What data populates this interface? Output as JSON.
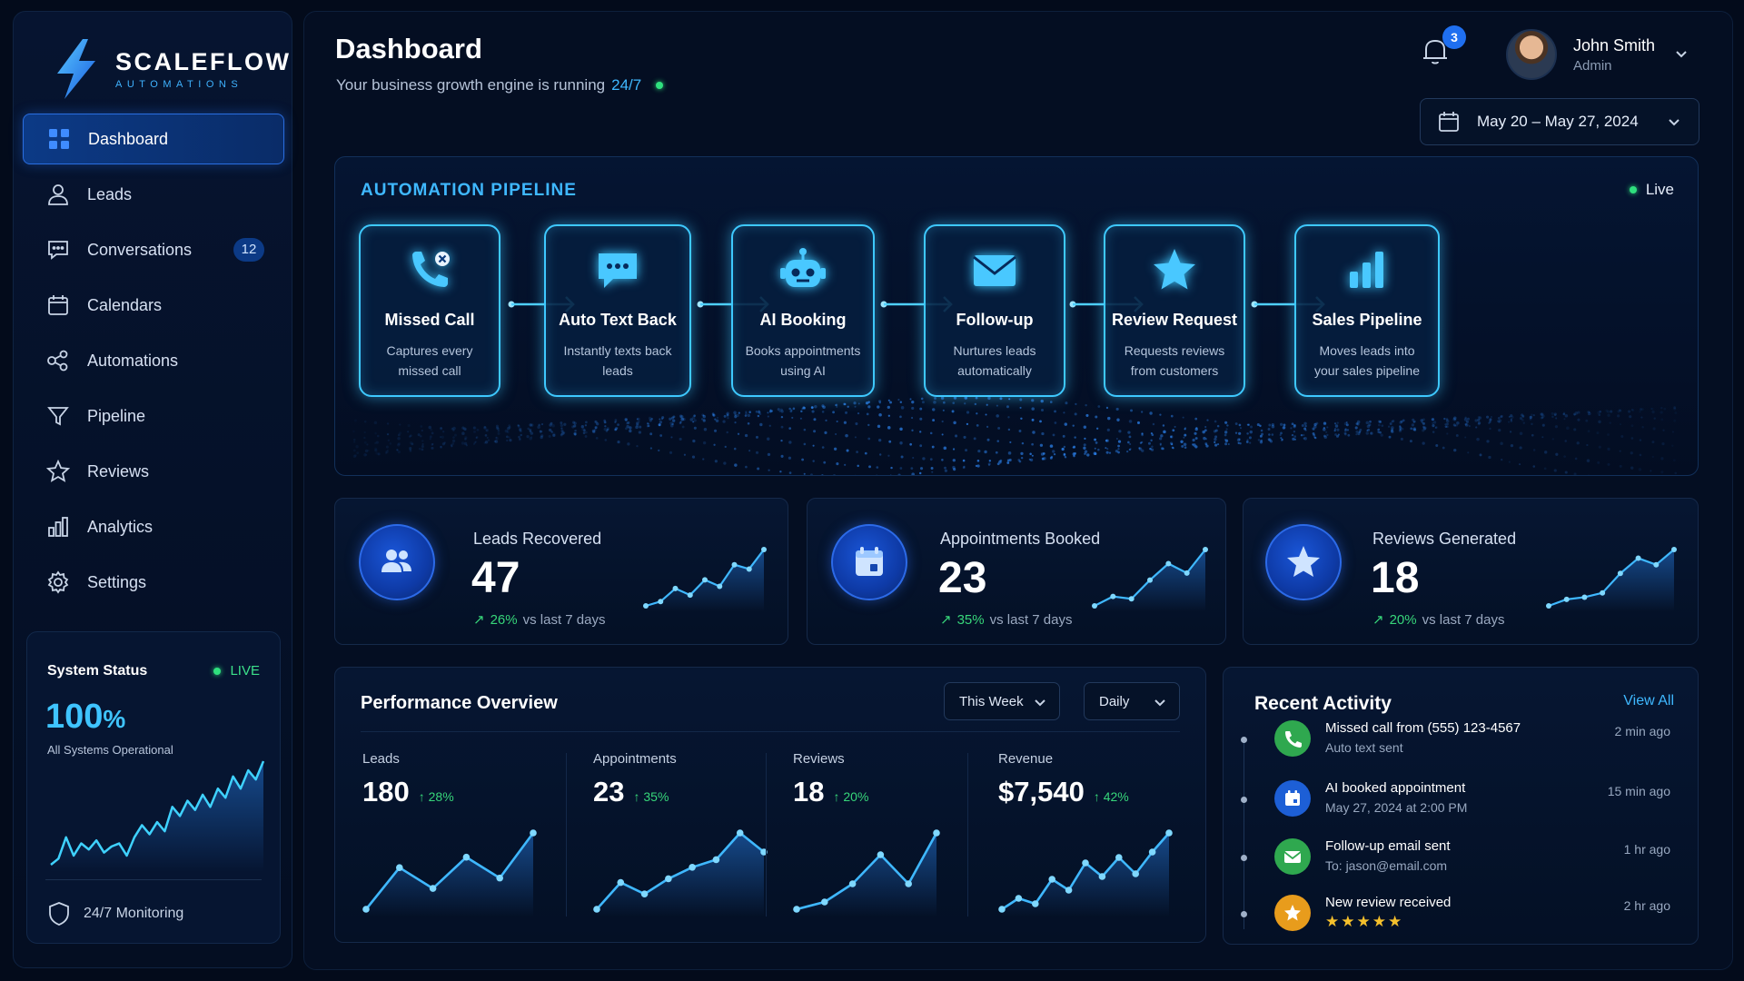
{
  "brand": {
    "name": "SCALEFLOW",
    "tagline": "AUTOMATIONS"
  },
  "sidebar": {
    "items": [
      {
        "label": "Dashboard",
        "icon": "grid-icon",
        "active": true
      },
      {
        "label": "Leads",
        "icon": "user-icon"
      },
      {
        "label": "Conversations",
        "icon": "chat-icon",
        "badge": "12"
      },
      {
        "label": "Calendars",
        "icon": "calendar-icon"
      },
      {
        "label": "Automations",
        "icon": "share-nodes-icon"
      },
      {
        "label": "Pipeline",
        "icon": "funnel-icon"
      },
      {
        "label": "Reviews",
        "icon": "star-icon"
      },
      {
        "label": "Analytics",
        "icon": "bar-chart-icon"
      },
      {
        "label": "Settings",
        "icon": "gear-icon"
      }
    ],
    "system_status": {
      "title": "System Status",
      "live_label": "LIVE",
      "percent": "100",
      "percent_unit": "%",
      "subtitle": "All Systems Operational",
      "monitoring": "24/7 Monitoring",
      "sparkline": [
        8,
        12,
        26,
        14,
        22,
        18,
        24,
        16,
        20,
        22,
        14,
        26,
        34,
        28,
        36,
        30,
        46,
        40,
        50,
        44,
        54,
        46,
        58,
        52,
        66,
        58,
        70,
        64,
        76
      ]
    }
  },
  "header": {
    "title": "Dashboard",
    "subtitle": "Your business growth engine is running",
    "subtitle_accent": "24/7",
    "notifications": "3",
    "user_name": "John Smith",
    "user_role": "Admin",
    "date_range": "May 20 – May 27, 2024"
  },
  "pipeline": {
    "title": "AUTOMATION PIPELINE",
    "live_label": "Live",
    "steps": [
      {
        "title": "Missed Call",
        "desc": "Captures every missed call",
        "icon": "missed-call-icon"
      },
      {
        "title": "Auto Text Back",
        "desc": "Instantly texts back leads",
        "icon": "chat-bubble-icon"
      },
      {
        "title": "AI Booking",
        "desc": "Books appointments using AI",
        "icon": "robot-icon"
      },
      {
        "title": "Follow-up",
        "desc": "Nurtures leads automatically",
        "icon": "envelope-icon"
      },
      {
        "title": "Review Request",
        "desc": "Requests reviews from customers",
        "icon": "star-icon"
      },
      {
        "title": "Sales Pipeline",
        "desc": "Moves leads into your sales pipeline",
        "icon": "bar-chart-icon"
      }
    ]
  },
  "kpis": [
    {
      "label": "Leads Recovered",
      "value": "47",
      "delta": "26%",
      "delta_text": "vs last 7 days",
      "icon": "users-icon",
      "trend": [
        10,
        14,
        26,
        20,
        34,
        28,
        48,
        44,
        62
      ]
    },
    {
      "label": "Appointments Booked",
      "value": "23",
      "delta": "35%",
      "delta_text": "vs last 7 days",
      "icon": "calendar-icon",
      "trend": [
        8,
        16,
        14,
        30,
        44,
        36,
        56
      ]
    },
    {
      "label": "Reviews Generated",
      "value": "18",
      "delta": "20%",
      "delta_text": "vs last 7 days",
      "icon": "star-icon",
      "trend": [
        6,
        12,
        14,
        18,
        36,
        50,
        44,
        58
      ]
    }
  ],
  "performance": {
    "title": "Performance Overview",
    "period": "This Week",
    "granularity": "Daily",
    "metrics": [
      {
        "label": "Leads",
        "value": "180",
        "delta": "28%",
        "trend": [
          4,
          28,
          16,
          34,
          22,
          48
        ]
      },
      {
        "label": "Appointments",
        "value": "23",
        "delta": "35%",
        "trend": [
          4,
          18,
          12,
          20,
          26,
          30,
          44,
          34
        ]
      },
      {
        "label": "Reviews",
        "value": "18",
        "delta": "20%",
        "trend": [
          10,
          14,
          24,
          40,
          24,
          52
        ]
      },
      {
        "label": "Revenue",
        "value": "$7,540",
        "delta": "42%",
        "trend": [
          6,
          14,
          10,
          28,
          20,
          40,
          30,
          44,
          32,
          48,
          62
        ]
      }
    ]
  },
  "activity": {
    "title": "Recent Activity",
    "view_all": "View All",
    "items": [
      {
        "main": "Missed call from (555) 123-4567",
        "sub": "Auto text sent",
        "time": "2 min ago",
        "icon": "phone-icon",
        "color": "#2fa84f"
      },
      {
        "main": "AI booked appointment",
        "sub": "May 27, 2024 at 2:00 PM",
        "time": "15 min ago",
        "icon": "calendar-icon",
        "color": "#1d5fd6"
      },
      {
        "main": "Follow-up email sent",
        "sub": "To: jason@email.com",
        "time": "1 hr ago",
        "icon": "envelope-icon",
        "color": "#2fa84f"
      },
      {
        "main": "New review received",
        "sub": "★★★★★",
        "time": "2 hr ago",
        "icon": "star-icon",
        "color": "#e89c1c"
      }
    ]
  }
}
